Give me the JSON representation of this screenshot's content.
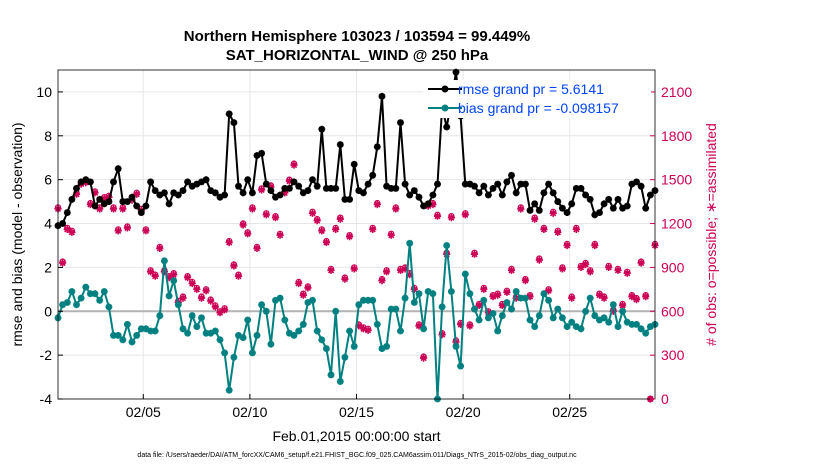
{
  "title_line1": "Northern Hemisphere 103023 / 103594 = 99.449%",
  "title_line2": "SAT_HORIZONTAL_WIND @ 250 hPa",
  "footnote": "data file: /Users/raeder/DAI/ATM_forcXX/CAM6_setup/f.e21.FHIST_BGC.f09_025.CAM6assim.011/Diags_NTrS_2015-02/obs_diag_output.nc",
  "colors": {
    "rmse": "#000000",
    "bias": "#008080",
    "obs": "#cc0055",
    "legend_text": "#0044ff",
    "zero_line": "#b3b3b3"
  },
  "chart_data": {
    "type": "line",
    "xlabel": "Feb.01,2015 00:00:00 start",
    "ylabel_left": "rmse and bias (model - observation)",
    "ylabel_right": "# of obs: o=possible; ∗=assimilated",
    "xlim": [
      1,
      29
    ],
    "ylim_left": [
      -4,
      11
    ],
    "ylim_right": [
      0,
      2250
    ],
    "x_ticks": [
      5,
      10,
      15,
      20,
      25
    ],
    "x_tick_labels": [
      "02/05",
      "02/10",
      "02/15",
      "02/20",
      "02/25"
    ],
    "y_left_ticks": [
      -4,
      -2,
      0,
      2,
      4,
      6,
      8,
      10
    ],
    "y_left_tick_labels": [
      "-4",
      "-2",
      "0",
      "2",
      "4",
      "6",
      "8",
      "10"
    ],
    "y_right_ticks": [
      0,
      300,
      600,
      900,
      1200,
      1500,
      1800,
      2100
    ],
    "y_right_tick_labels": [
      "0",
      "300",
      "600",
      "900",
      "1200",
      "1500",
      "1800",
      "2100"
    ],
    "grid": true,
    "legend_location": "top-right",
    "series": [
      {
        "name": "rmse grand pr = 5.6141",
        "axis": "left",
        "marker": "star",
        "values": [
          3.9,
          4.0,
          4.5,
          5.1,
          5.6,
          5.9,
          6.0,
          5.9,
          4.8,
          5.1,
          4.9,
          5.0,
          5.9,
          6.5,
          5.0,
          5.0,
          5.2,
          4.8,
          4.5,
          4.8,
          5.9,
          5.5,
          5.3,
          5.4,
          4.9,
          5.4,
          5.3,
          5.5,
          5.9,
          5.7,
          5.8,
          5.9,
          6.0,
          5.5,
          5.4,
          5.2,
          5.3,
          9.0,
          8.6,
          5.7,
          5.4,
          6.0,
          5.4,
          7.1,
          7.2,
          5.8,
          5.5,
          5.2,
          5.3,
          5.6,
          5.6,
          5.9,
          5.7,
          5.4,
          5.5,
          6.0,
          5.7,
          8.3,
          5.6,
          5.6,
          5.6,
          7.6,
          5.1,
          5.1,
          6.7,
          5.5,
          5.4,
          5.8,
          6.2,
          7.5,
          9.8,
          5.7,
          5.6,
          5.6,
          8.6,
          5.8,
          5.3,
          5.5,
          5.2,
          4.8,
          4.9,
          5.3,
          5.8,
          9.3,
          8.4,
          9.6,
          10.9,
          8.9,
          5.8,
          5.8,
          5.7,
          5.4,
          5.7,
          5.3,
          5.6,
          5.8,
          5.3,
          5.9,
          6.2,
          5.4,
          5.8,
          5.8,
          4.6,
          4.9,
          4.6,
          5.4,
          5.8,
          5.4,
          5.0,
          4.7,
          4.5,
          4.9,
          5.6,
          5.6,
          5.3,
          5.1,
          4.4,
          4.5,
          4.9,
          5.1,
          4.7,
          5.1,
          4.7,
          4.8,
          5.8,
          5.9,
          5.7,
          4.7,
          5.3,
          5.5
        ]
      },
      {
        "name": "bias grand pr = -0.098157",
        "axis": "left",
        "marker": "star",
        "values": [
          -0.3,
          0.3,
          0.4,
          0.9,
          0.3,
          0.6,
          1.1,
          0.8,
          0.8,
          0.5,
          0.9,
          0.2,
          -1.1,
          -1.1,
          -1.3,
          -0.6,
          -1.4,
          -1.1,
          -0.8,
          -0.8,
          -0.9,
          -0.9,
          -0.2,
          2.3,
          0.7,
          1.4,
          0.3,
          -0.8,
          -1.0,
          -0.2,
          -0.7,
          -0.3,
          -1.0,
          -1.0,
          -0.9,
          -1.3,
          -1.9,
          -3.6,
          -2.1,
          -1.1,
          -1.2,
          -0.4,
          -1.9,
          -1.1,
          0.3,
          0.0,
          -1.5,
          0.5,
          0.6,
          -0.4,
          -1.0,
          -1.1,
          -0.9,
          -0.6,
          0.4,
          0.5,
          -0.9,
          -1.3,
          -1.7,
          -2.9,
          0.0,
          -3.2,
          -2.1,
          -0.9,
          -1.6,
          0.3,
          0.5,
          0.5,
          0.5,
          -0.6,
          -1.7,
          -1.6,
          0.1,
          0.1,
          -0.9,
          0.6,
          3.1,
          0.4,
          0.8,
          -0.8,
          0.9,
          0.8,
          -4.0,
          0.2,
          3.0,
          0.9,
          -1.6,
          -2.5,
          1.7,
          0.8,
          0.1,
          -0.4,
          0.5,
          -0.3,
          -0.1,
          -0.9,
          -0.2,
          0.4,
          0.1,
          0.9,
          0.6,
          0.6,
          -0.4,
          -0.7,
          -0.2,
          0.8,
          0.5,
          -0.3,
          0.1,
          -0.3,
          -0.7,
          -0.5,
          -0.7,
          -0.8,
          0.0,
          0.6,
          -0.2,
          -0.4,
          -0.3,
          -0.5,
          0.3,
          -0.7,
          0.0,
          -0.5,
          -0.6,
          -0.6,
          -0.8,
          -1.0,
          -0.7,
          -0.6
        ]
      },
      {
        "name": "obs possible",
        "axis": "right",
        "marker": "o",
        "values": [
          1310,
          940,
          1170,
          1150,
          1410,
          1480,
          1490,
          1340,
          1420,
          1310,
          1380,
          1390,
          1310,
          1160,
          1310,
          1180,
          1370,
          1410,
          1300,
          1160,
          880,
          850,
          1040,
          880,
          840,
          860,
          670,
          700,
          840,
          800,
          760,
          700,
          750,
          680,
          640,
          600,
          620,
          1080,
          920,
          850,
          1200,
          1140,
          1310,
          1040,
          1440,
          1270,
          1460,
          1250,
          1130,
          1420,
          1500,
          1610,
          800,
          720,
          770,
          1280,
          1230,
          1160,
          1080,
          890,
          1170,
          1240,
          830,
          1120,
          900,
          510,
          490,
          480,
          1170,
          1340,
          820,
          880,
          1130,
          1310,
          890,
          900,
          860,
          760,
          510,
          290,
          1330,
          1340,
          1260,
          450,
          1000,
          1250,
          400,
          520,
          1270,
          510,
          1000,
          650,
          760,
          600,
          710,
          720,
          650,
          740,
          890,
          700,
          1310,
          820,
          710,
          1240,
          960,
          1170,
          750,
          1280,
          1150,
          900,
          1060,
          700,
          1170,
          910,
          930,
          880,
          1060,
          720,
          700,
          910,
          610,
          890,
          650,
          870,
          710,
          690,
          940,
          710,
          0,
          1060
        ]
      },
      {
        "name": "obs assimilated",
        "axis": "right",
        "marker": "star",
        "values": [
          1300,
          930,
          1160,
          1140,
          1400,
          1470,
          1480,
          1330,
          1410,
          1300,
          1370,
          1380,
          1300,
          1150,
          1300,
          1170,
          1360,
          1400,
          1290,
          1150,
          870,
          840,
          1030,
          870,
          830,
          850,
          660,
          690,
          830,
          790,
          750,
          690,
          740,
          670,
          630,
          590,
          610,
          1070,
          910,
          840,
          1190,
          1130,
          1300,
          1030,
          1430,
          1260,
          1450,
          1240,
          1120,
          1410,
          1490,
          1600,
          790,
          710,
          760,
          1270,
          1220,
          1150,
          1070,
          880,
          1160,
          1230,
          820,
          1110,
          890,
          500,
          480,
          470,
          1160,
          1330,
          810,
          870,
          1120,
          1300,
          880,
          890,
          850,
          750,
          500,
          280,
          1320,
          1330,
          1250,
          440,
          990,
          1240,
          390,
          510,
          1260,
          500,
          990,
          640,
          750,
          590,
          700,
          710,
          640,
          730,
          880,
          690,
          1300,
          810,
          700,
          1230,
          950,
          1160,
          740,
          1270,
          1140,
          890,
          1050,
          690,
          1160,
          900,
          920,
          870,
          1050,
          710,
          690,
          900,
          600,
          880,
          640,
          860,
          700,
          680,
          930,
          700,
          0,
          1050
        ]
      }
    ]
  }
}
